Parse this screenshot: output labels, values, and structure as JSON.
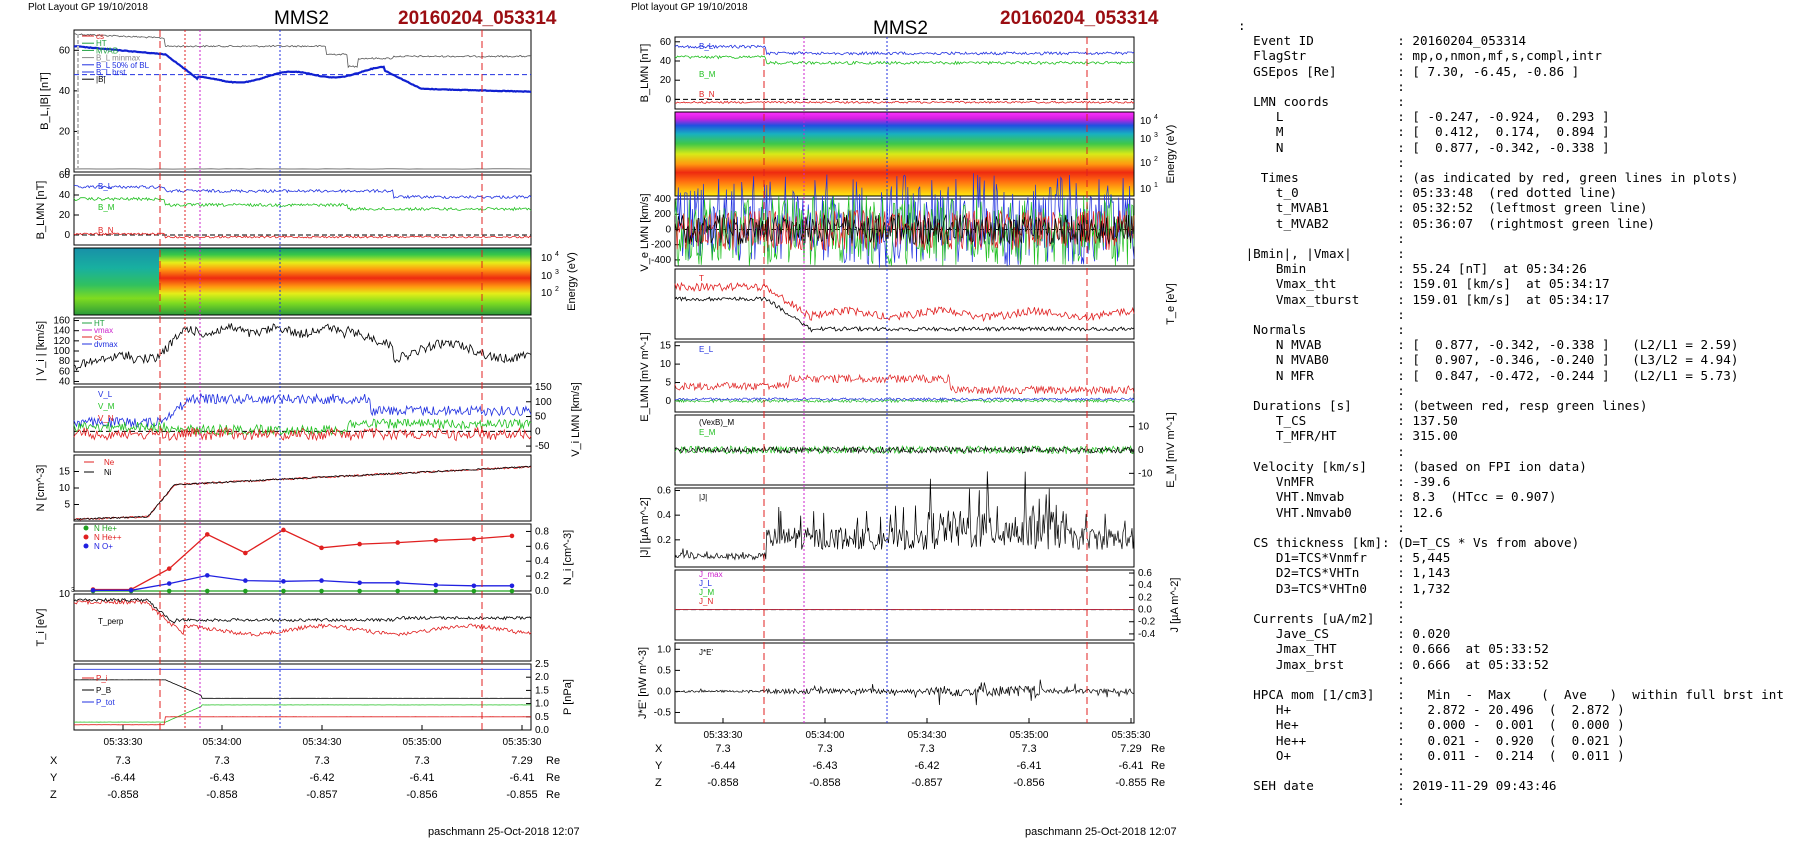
{
  "left": {
    "plot_layout": "Plot Layout GP 19/10/2018",
    "spacecraft": "MMS2",
    "event_id": "20160204_053314",
    "footer": "paschmann 25-Oct-2018 12:07"
  },
  "middle": {
    "plot_layout": "Plot layout GP 19/10/2018",
    "spacecraft": "MMS2",
    "event_id": "20160204_053314",
    "footer": "paschmann 25-Oct-2018 12:07"
  },
  "time_ticks": [
    "05:33:30",
    "05:34:00",
    "05:34:30",
    "05:35:00",
    "05:35:30"
  ],
  "positions": {
    "unit": "Re",
    "X": [
      "7.3",
      "7.3",
      "7.3",
      "7.3",
      "7.29"
    ],
    "Y": [
      "-6.44",
      "-6.43",
      "-6.42",
      "-6.41",
      "-6.41"
    ],
    "Z": [
      "-0.858",
      "-0.858",
      "-0.857",
      "-0.856",
      "-0.855"
    ]
  },
  "chart_data": [
    {
      "type": "line",
      "panel": "B",
      "ylabel": "B_L,|B| [nT]",
      "ylim": [
        0,
        70
      ],
      "ticks": [
        "0",
        "20",
        "40",
        "60"
      ],
      "legend": [
        "cs",
        "HT",
        "MVAB",
        "B_L minmax",
        "B_L 50% of BL",
        "B_L brst",
        "|B|"
      ]
    },
    {
      "type": "line",
      "panel": "B_LMN",
      "ylabel": "B_LMN [nT]",
      "ylim": [
        -10,
        60
      ],
      "ticks": [
        "0",
        "20",
        "40",
        "60"
      ],
      "legend": [
        "B_L",
        "B_M",
        "B_N"
      ]
    },
    {
      "type": "heatmap",
      "panel": "ion energy spectrogram",
      "ylabel": "Energy (eV)",
      "ticks": [
        "10^2",
        "10^3",
        "10^4"
      ]
    },
    {
      "type": "line",
      "panel": "|Vi|",
      "ylabel": "| V_i | [km/s]",
      "ylim": [
        40,
        160
      ],
      "ticks": [
        "40",
        "60",
        "80",
        "100",
        "120",
        "140",
        "160"
      ],
      "legend": [
        "HT",
        "vmax",
        "cs",
        "dvmax"
      ]
    },
    {
      "type": "line",
      "panel": "Vi LMN",
      "ylabel": "V_i LMN [km/s]",
      "ylim": [
        -70,
        150
      ],
      "ticks": [
        "-50",
        "0",
        "50",
        "100",
        "150"
      ],
      "legend": [
        "V_L",
        "V_M",
        "V_N"
      ]
    },
    {
      "type": "line",
      "panel": "N",
      "ylabel": "N [cm^-3]",
      "ylim": [
        0,
        20
      ],
      "ticks": [
        "5",
        "10",
        "15"
      ],
      "legend": [
        "Ne",
        "Ni"
      ]
    },
    {
      "type": "line",
      "panel": "HPCA Ni",
      "ylabel": "N_i [cm^-3]",
      "ylim": [
        0,
        0.9
      ],
      "ticks": [
        "0.0",
        "0.2",
        "0.4",
        "0.6",
        "0.8"
      ],
      "legend": [
        "N  He+",
        "N  He++",
        "N  O+"
      ],
      "series": [
        {
          "name": "N  He+",
          "values": [
            0.0,
            0.0,
            0.0,
            0.0,
            0.0,
            0.0,
            0.0,
            0.0,
            0.0,
            0.0,
            0.0,
            0.0
          ]
        },
        {
          "name": "N  He++",
          "values": [
            0.02,
            0.02,
            0.3,
            0.76,
            0.51,
            0.82,
            0.58,
            0.63,
            0.65,
            0.68,
            0.7,
            0.74
          ]
        },
        {
          "name": "N  O+",
          "values": [
            0.01,
            0.01,
            0.1,
            0.21,
            0.14,
            0.13,
            0.14,
            0.11,
            0.11,
            0.08,
            0.07,
            0.07
          ]
        }
      ]
    },
    {
      "type": "line",
      "panel": "Ti",
      "ylabel": "T_i [eV]",
      "ticks": [
        "10^3"
      ],
      "legend": [
        "T_perp"
      ]
    },
    {
      "type": "line",
      "panel": "P",
      "ylabel": "P [nPa]",
      "ylim": [
        0,
        2.5
      ],
      "ticks": [
        "0.0",
        "0.5",
        "1.0",
        "1.5",
        "2.0",
        "2.5"
      ],
      "legend": [
        "P_i",
        "P_B",
        "P_tot"
      ]
    },
    {
      "type": "line",
      "panel": "B_LMN (mid)",
      "ylabel": "B_LMN [nT]",
      "ticks": [
        "0",
        "20",
        "40",
        "60"
      ],
      "legend": [
        "B_L",
        "B_M",
        "B_N"
      ]
    },
    {
      "type": "heatmap",
      "panel": "electron energy spectrogram",
      "ylabel": "Energy (eV)",
      "ticks": [
        "10^1",
        "10^2",
        "10^3",
        "10^4"
      ]
    },
    {
      "type": "line",
      "panel": "Ve LMN",
      "ylabel": "V_e LMN [km/s]",
      "ticks": [
        "-400",
        "-200",
        "0",
        "200",
        "400"
      ]
    },
    {
      "type": "line",
      "panel": "Te",
      "ylabel": "T_e [eV]",
      "legend": [
        "T_par",
        "T_perp"
      ]
    },
    {
      "type": "line",
      "panel": "E LMN",
      "ylabel": "E_LMN [mV m^-1]",
      "ticks": [
        "0",
        "5",
        "10",
        "15"
      ],
      "legend": [
        "E_L"
      ]
    },
    {
      "type": "line",
      "panel": "E_M",
      "ylabel": "E_M [mV m^-1]",
      "ticks": [
        "-10",
        "0",
        "10"
      ],
      "legend": [
        "(VexB)_M",
        "E_M"
      ]
    },
    {
      "type": "line",
      "panel": "|J|",
      "ylabel": "|J| [µA m^-2]",
      "ticks": [
        "0.2",
        "0.4",
        "0.6"
      ],
      "legend": [
        "|J|"
      ]
    },
    {
      "type": "line",
      "panel": "J",
      "ylabel": "J [µA m^-2]",
      "ticks": [
        "-0.4",
        "-0.2",
        "0.0",
        "0.2",
        "0.4",
        "0.6"
      ],
      "legend": [
        "J_max",
        "J_L",
        "J_M",
        "J_N"
      ]
    },
    {
      "type": "line",
      "panel": "J*E",
      "ylabel": "J*E' [nW m^-3]",
      "ticks": [
        "-0.5",
        "0.0",
        "0.5",
        "1.0"
      ],
      "legend": [
        "J*E'"
      ]
    }
  ],
  "info": {
    "lines": [
      ":",
      "  Event ID           : 20160204_053314",
      "  FlagStr            : mp,o,nmon,mf,s,compl,intr",
      "  GSEpos [Re]        : [ 7.30, -6.45, -0.86 ]",
      "                     :",
      "  LMN coords         :",
      "     L               : [ -0.247, -0.924,  0.293 ]",
      "     M               : [  0.412,  0.174,  0.894 ]",
      "     N               : [  0.877, -0.342, -0.338 ]",
      "                     :",
      "   Times             : (as indicated by red, green lines in plots)",
      "     t_0             : 05:33:48  (red dotted line)",
      "     t_MVAB1         : 05:32:52  (leftmost green line)",
      "     t_MVAB2         : 05:36:07  (rightmost green line)",
      "                     :",
      " |Bmin|, |Vmax|      :",
      "     Bmin            : 55.24 [nT]  at 05:34:26",
      "     Vmax_tht        : 159.01 [km/s]  at 05:34:17",
      "     Vmax_tburst     : 159.01 [km/s]  at 05:34:17",
      "                     :",
      "  Normals            :",
      "     N MVAB          : [  0.877, -0.342, -0.338 ]   (L2/L1 = 2.59)",
      "     N MVAB0         : [  0.907, -0.346, -0.240 ]   (L3/L2 = 4.94)",
      "     N MFR           : [  0.847, -0.472, -0.244 ]   (L2/L1 = 5.73)",
      "                     :",
      "  Durations [s]      : (between red, resp green lines)",
      "     T_CS            : 137.50",
      "     T_MFR/HT        : 315.00",
      "                     :",
      "  Velocity [km/s]    : (based on FPI ion data)",
      "     VnMFR           : -39.6",
      "     VHT.Nmvab       : 8.3  (HTcc = 0.907)",
      "     VHT.Nmvab0      : 12.6",
      "                     :",
      "  CS thickness [km]: (D=T_CS * Vs from above)",
      "     D1=TCS*Vnmfr    : 5,445",
      "     D2=TCS*VHTn     : 1,143",
      "     D3=TCS*VHTn0    : 1,732",
      "                     :",
      "  Currents [uA/m2]   :",
      "     Jave_CS         : 0.020",
      "     Jmax_THT        : 0.666  at 05:33:52",
      "     Jmax_brst       : 0.666  at 05:33:52",
      "                     :",
      "  HPCA mom [1/cm3]   :   Min  -  Max    (  Ave   )  within full brst int",
      "     H+              :   2.872 - 20.496  (  2.872 )",
      "     He+             :   0.000 -  0.001  (  0.000 )",
      "     He++            :   0.021 -  0.920  (  0.021 )",
      "     O+              :   0.011 -  0.214  (  0.011 )",
      "                     :",
      "  SEH date           : 2019-11-29 09:43:46",
      "                     :"
    ]
  }
}
